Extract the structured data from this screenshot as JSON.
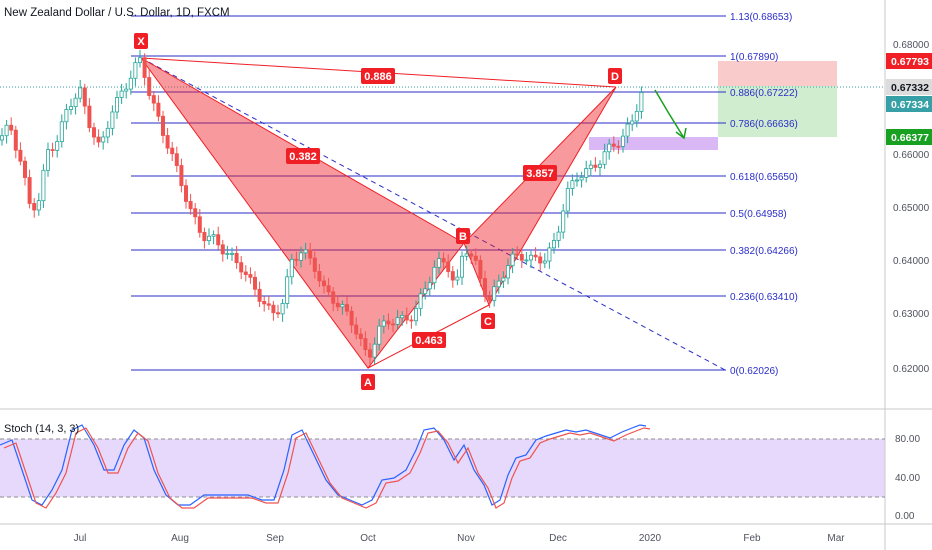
{
  "header": {
    "title": "New Zealand Dollar / U.S. Dollar, 1D, FXCM"
  },
  "stochastic": {
    "label": "Stoch (14, 3, 3)",
    "levels": [
      "80.00",
      "40.00",
      "0.00"
    ]
  },
  "x_axis": [
    "Jul",
    "Aug",
    "Sep",
    "Oct",
    "Nov",
    "Dec",
    "2020",
    "Feb",
    "Mar"
  ],
  "y_axis": [
    "0.68000",
    "0.66000",
    "0.65000",
    "0.64000",
    "0.63000",
    "0.62000"
  ],
  "price_labels": [
    {
      "text": "0.67793",
      "color": "#ef1f25"
    },
    {
      "text": "0.67332",
      "color": "#dcdcdc"
    },
    {
      "text": "0.67334",
      "color": "#37a0a6"
    },
    {
      "text": "0.66377",
      "color": "#18a020"
    }
  ],
  "fib_levels": [
    {
      "ratio": "1.13",
      "price": "0.68653",
      "label": "1.13(0.68653)"
    },
    {
      "ratio": "1",
      "price": "0.67890",
      "label": "1(0.67890)"
    },
    {
      "ratio": "0.886",
      "price": "0.67222",
      "label": "0.886(0.67222)"
    },
    {
      "ratio": "0.786",
      "price": "0.66636",
      "label": "0.786(0.66636)"
    },
    {
      "ratio": "0.618",
      "price": "0.65650",
      "label": "0.618(0.65650)"
    },
    {
      "ratio": "0.5",
      "price": "0.64958",
      "label": "0.5(0.64958)"
    },
    {
      "ratio": "0.382",
      "price": "0.64266",
      "label": "0.382(0.64266)"
    },
    {
      "ratio": "0.236",
      "price": "0.63410",
      "label": "0.236(0.63410)"
    },
    {
      "ratio": "0",
      "price": "0.62026",
      "label": "0(0.62026)"
    }
  ],
  "pattern": {
    "points": [
      "X",
      "A",
      "B",
      "C",
      "D"
    ],
    "ratios": [
      "0.886",
      "0.382",
      "3.857",
      "0.463"
    ]
  },
  "colors": {
    "fib_line": "#2a2ec8",
    "pattern": "#ef1f25",
    "up": "#26a69a",
    "down": "#ef5350",
    "stoch_k": "#2962ff",
    "stoch_d": "#ef5350"
  }
}
